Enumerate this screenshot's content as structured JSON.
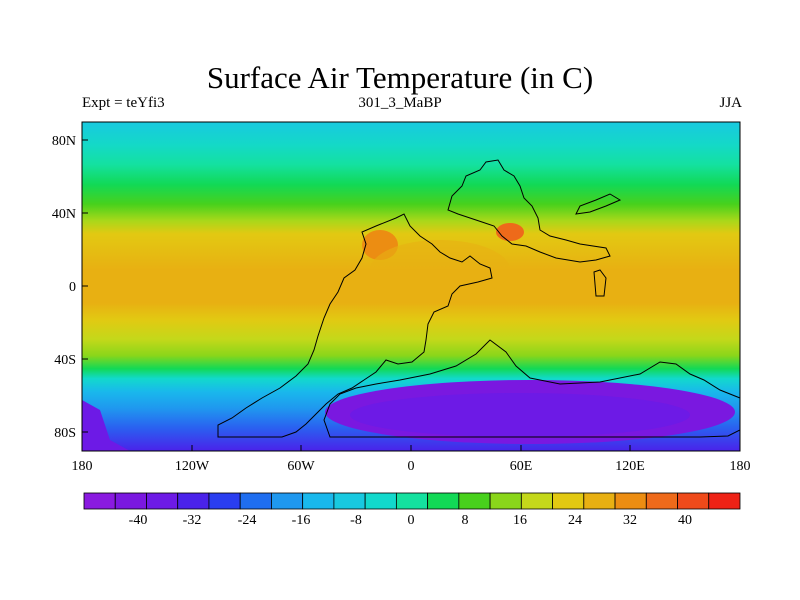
{
  "figure": {
    "title": "Surface Air Temperature (in C)",
    "left_label": "Expt = teYfi3",
    "center_label": "301_3_MaBP",
    "right_label": "JJA"
  },
  "map": {
    "projection": "cylindrical equidistant",
    "lon_range": [
      -180,
      180
    ],
    "lat_range": [
      -90,
      90
    ],
    "x_ticks": [
      "180",
      "120W",
      "60W",
      "0",
      "60E",
      "120E",
      "180"
    ],
    "y_ticks": [
      "80N",
      "40N",
      "0",
      "40S",
      "80S"
    ],
    "coastlines": "black outline of continents"
  },
  "colorbar": {
    "orientation": "horizontal",
    "labels": [
      "-40",
      "-32",
      "-24",
      "-16",
      "-8",
      "0",
      "8",
      "16",
      "24",
      "32",
      "40"
    ],
    "colors": [
      "#8a1ae0",
      "#7a18e0",
      "#6d1ae6",
      "#4a22ea",
      "#2a3ef0",
      "#1f6ef0",
      "#1f98ef",
      "#19b8ec",
      "#18c9e0",
      "#12d9cc",
      "#14e19f",
      "#12d956",
      "#48d11c",
      "#8ad61a",
      "#c4d81a",
      "#e2c912",
      "#e8b012",
      "#ec8d12",
      "#ee6a1a",
      "#ef4a1a",
      "#ee2216"
    ]
  },
  "legend_unit": "C"
}
